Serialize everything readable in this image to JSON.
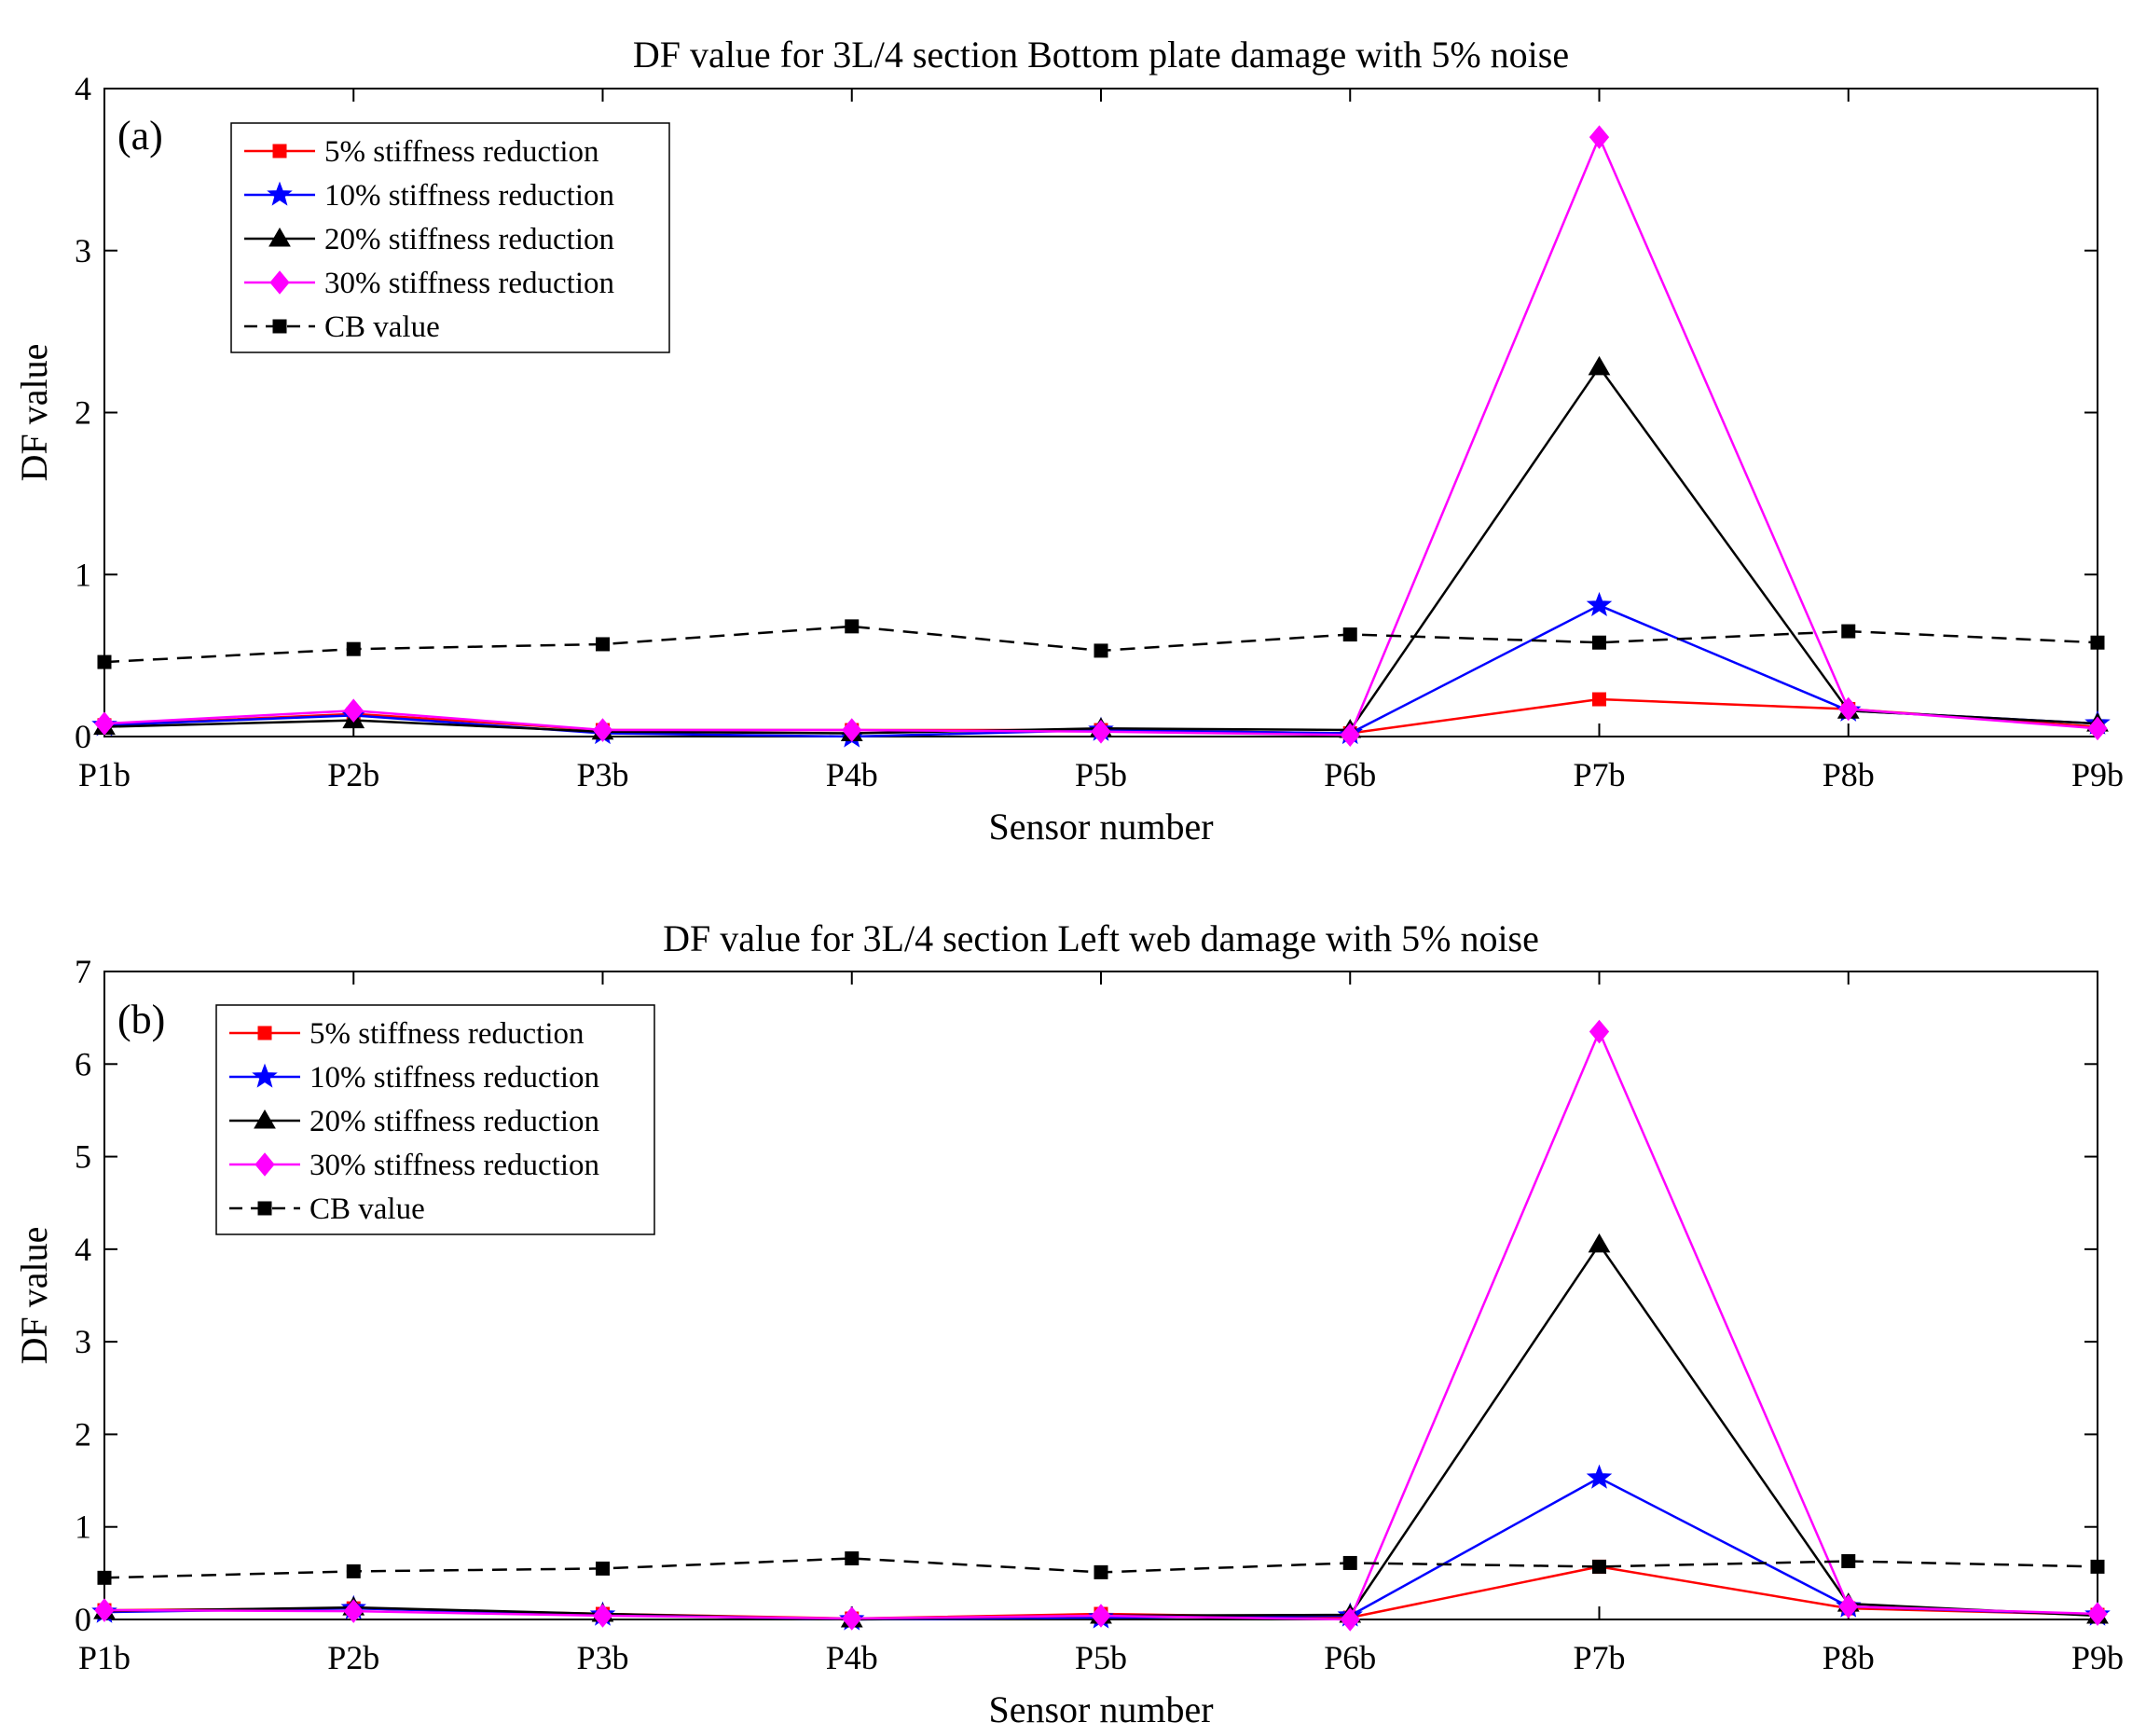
{
  "chart_data": [
    {
      "type": "line",
      "panel_label": "(a)",
      "title": "DF value  for 3L/4 section Bottom plate damage with 5% noise",
      "xlabel": "Sensor number",
      "ylabel": "DF value",
      "categories": [
        "P1b",
        "P2b",
        "P3b",
        "P4b",
        "P5b",
        "P6b",
        "P7b",
        "P8b",
        "P9b"
      ],
      "ylim": [
        0,
        4
      ],
      "yticks": [
        0,
        1,
        2,
        3,
        4
      ],
      "legend_position": "top-left",
      "series": [
        {
          "name": "5% stiffness reduction",
          "color": "#ff0000",
          "marker": "square",
          "dashed": false,
          "values": [
            0.07,
            0.14,
            0.04,
            0.04,
            0.04,
            0.02,
            0.23,
            0.17,
            0.06
          ]
        },
        {
          "name": "10% stiffness reduction",
          "color": "#0000ff",
          "marker": "star",
          "dashed": false,
          "values": [
            0.07,
            0.13,
            0.02,
            0.0,
            0.04,
            0.02,
            0.81,
            0.16,
            0.08
          ]
        },
        {
          "name": "20% stiffness reduction",
          "color": "#000000",
          "marker": "triangle",
          "dashed": false,
          "values": [
            0.06,
            0.1,
            0.03,
            0.02,
            0.05,
            0.04,
            2.28,
            0.16,
            0.08
          ]
        },
        {
          "name": "30% stiffness reduction",
          "color": "#ff00ff",
          "marker": "diamond",
          "dashed": false,
          "values": [
            0.08,
            0.16,
            0.04,
            0.04,
            0.03,
            0.01,
            3.7,
            0.17,
            0.05
          ]
        },
        {
          "name": "CB value",
          "color": "#000000",
          "marker": "square",
          "dashed": true,
          "values": [
            0.46,
            0.54,
            0.57,
            0.68,
            0.53,
            0.63,
            0.58,
            0.65,
            0.58
          ]
        }
      ]
    },
    {
      "type": "line",
      "panel_label": "(b)",
      "title": "DF value  for 3L/4 section Left web damage with 5% noise",
      "xlabel": "Sensor number",
      "ylabel": "DF value",
      "categories": [
        "P1b",
        "P2b",
        "P3b",
        "P4b",
        "P5b",
        "P6b",
        "P7b",
        "P8b",
        "P9b"
      ],
      "ylim": [
        0,
        7
      ],
      "yticks": [
        0,
        1,
        2,
        3,
        4,
        5,
        6,
        7
      ],
      "legend_position": "top-left",
      "series": [
        {
          "name": "5% stiffness reduction",
          "color": "#ff0000",
          "marker": "square",
          "dashed": false,
          "values": [
            0.1,
            0.12,
            0.06,
            0.01,
            0.06,
            0.02,
            0.57,
            0.12,
            0.05
          ]
        },
        {
          "name": "10% stiffness reduction",
          "color": "#0000ff",
          "marker": "star",
          "dashed": false,
          "values": [
            0.08,
            0.12,
            0.05,
            0.0,
            0.02,
            0.04,
            1.53,
            0.14,
            0.05
          ]
        },
        {
          "name": "20% stiffness reduction",
          "color": "#000000",
          "marker": "triangle",
          "dashed": false,
          "values": [
            0.09,
            0.13,
            0.06,
            0.0,
            0.04,
            0.05,
            4.05,
            0.17,
            0.04
          ]
        },
        {
          "name": "30% stiffness reduction",
          "color": "#ff00ff",
          "marker": "diamond",
          "dashed": false,
          "values": [
            0.1,
            0.09,
            0.04,
            0.01,
            0.04,
            0.0,
            6.35,
            0.14,
            0.06
          ]
        },
        {
          "name": "CB value",
          "color": "#000000",
          "marker": "square",
          "dashed": true,
          "values": [
            0.45,
            0.52,
            0.55,
            0.66,
            0.51,
            0.61,
            0.57,
            0.63,
            0.57
          ]
        }
      ]
    }
  ]
}
